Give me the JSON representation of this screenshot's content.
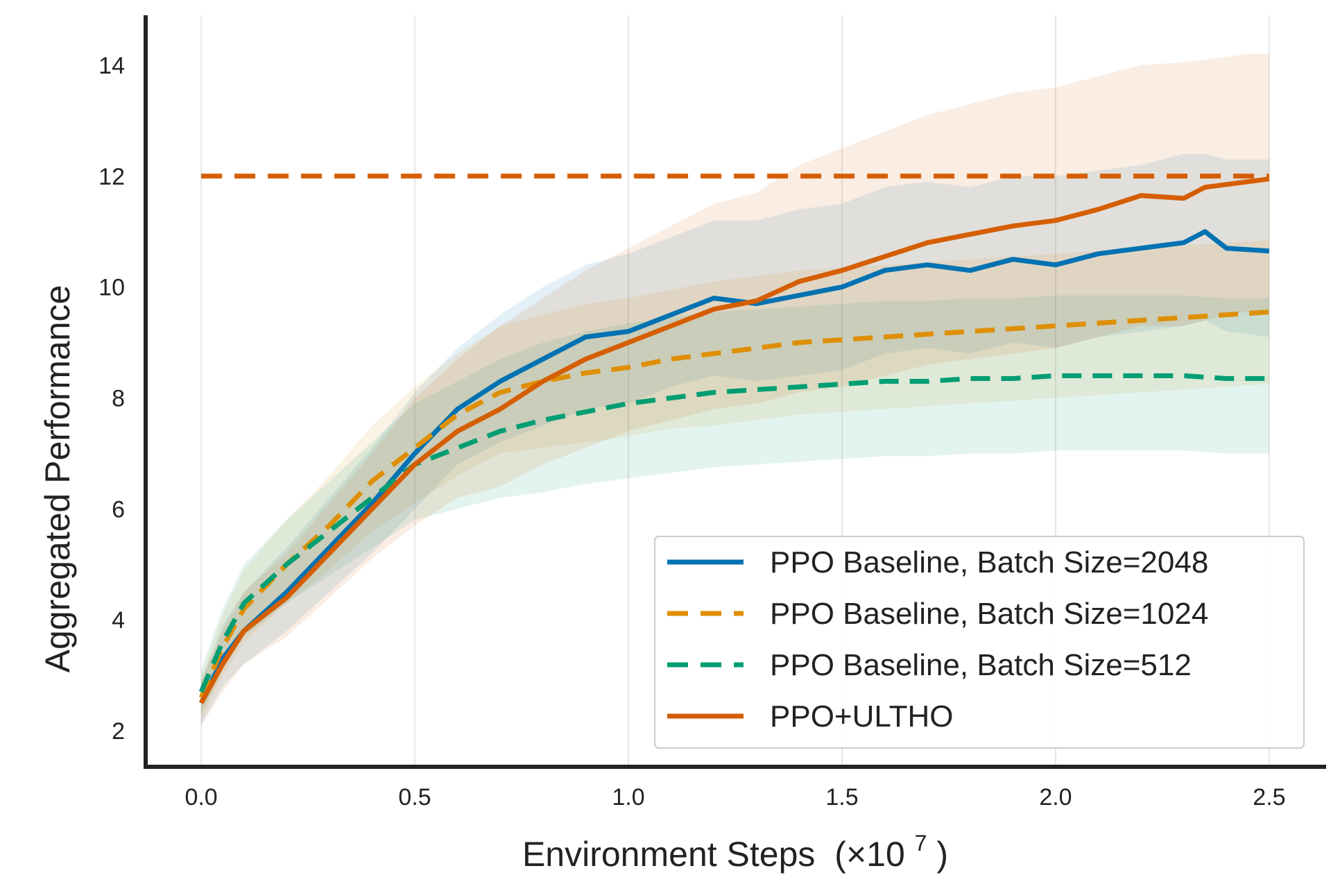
{
  "chart_data": {
    "type": "line",
    "xlabel_main": "Environment Steps",
    "xlabel_unit_prefix": "(×10",
    "xlabel_unit_exp": "7",
    "xlabel_unit_suffix": ")",
    "ylabel": "Aggregated Performance",
    "xlim": [
      -0.13,
      2.63
    ],
    "ylim": [
      1.35,
      14.9
    ],
    "xticks": [
      0.0,
      0.5,
      1.0,
      1.5,
      2.0,
      2.5
    ],
    "xtick_labels": [
      "0.0",
      "0.5",
      "1.0",
      "1.5",
      "2.0",
      "2.5"
    ],
    "yticks": [
      2,
      4,
      6,
      8,
      10,
      12,
      14
    ],
    "ytick_labels": [
      "2",
      "4",
      "6",
      "8",
      "10",
      "12",
      "14"
    ],
    "grid": "vertical",
    "legend_position": "bottom-right",
    "reference_line": {
      "y": 12.0,
      "color": "#d55e00",
      "style": "dashed"
    },
    "series": [
      {
        "name": "PPO Baseline, Batch Size=2048",
        "color": "#0072b2",
        "style": "solid",
        "x": [
          0.0,
          0.05,
          0.1,
          0.2,
          0.3,
          0.4,
          0.5,
          0.6,
          0.7,
          0.8,
          0.9,
          1.0,
          1.1,
          1.2,
          1.3,
          1.4,
          1.5,
          1.6,
          1.7,
          1.8,
          1.9,
          2.0,
          2.1,
          2.2,
          2.3,
          2.35,
          2.4,
          2.5
        ],
        "values": [
          2.5,
          3.3,
          3.8,
          4.5,
          5.3,
          6.1,
          7.0,
          7.8,
          8.3,
          8.7,
          9.1,
          9.2,
          9.5,
          9.8,
          9.7,
          9.85,
          10.0,
          10.3,
          10.4,
          10.3,
          10.5,
          10.4,
          10.6,
          10.7,
          10.8,
          11.0,
          10.7,
          10.65
        ],
        "band_upper": [
          2.9,
          3.9,
          4.5,
          5.3,
          6.2,
          7.1,
          8.1,
          8.9,
          9.5,
          10.0,
          10.4,
          10.6,
          10.9,
          11.2,
          11.2,
          11.4,
          11.5,
          11.8,
          11.9,
          11.8,
          12.0,
          12.0,
          12.1,
          12.2,
          12.4,
          12.4,
          12.3,
          12.3
        ],
        "band_lower": [
          2.1,
          2.8,
          3.2,
          3.8,
          4.5,
          5.2,
          6.0,
          6.8,
          7.2,
          7.5,
          7.8,
          7.9,
          8.2,
          8.4,
          8.3,
          8.4,
          8.5,
          8.8,
          8.9,
          8.8,
          9.0,
          8.9,
          9.1,
          9.2,
          9.3,
          9.4,
          9.2,
          9.1
        ]
      },
      {
        "name": "PPO Baseline, Batch Size=1024",
        "color": "#de8f05",
        "style": "dashed",
        "x": [
          0.0,
          0.05,
          0.1,
          0.2,
          0.3,
          0.4,
          0.5,
          0.6,
          0.7,
          0.8,
          0.9,
          1.0,
          1.1,
          1.2,
          1.3,
          1.4,
          1.5,
          1.6,
          1.7,
          1.8,
          1.9,
          2.0,
          2.1,
          2.2,
          2.3,
          2.4,
          2.5
        ],
        "values": [
          2.6,
          3.5,
          4.2,
          5.0,
          5.7,
          6.5,
          7.1,
          7.7,
          8.1,
          8.3,
          8.45,
          8.55,
          8.7,
          8.8,
          8.9,
          9.0,
          9.05,
          9.1,
          9.15,
          9.2,
          9.25,
          9.3,
          9.35,
          9.4,
          9.45,
          9.5,
          9.55
        ],
        "band_upper": [
          3.0,
          4.1,
          4.9,
          5.8,
          6.6,
          7.5,
          8.2,
          8.8,
          9.3,
          9.5,
          9.7,
          9.8,
          9.95,
          10.1,
          10.2,
          10.3,
          10.35,
          10.4,
          10.45,
          10.5,
          10.55,
          10.6,
          10.65,
          10.7,
          10.75,
          10.8,
          10.85
        ],
        "band_lower": [
          2.2,
          3.0,
          3.6,
          4.3,
          4.9,
          5.6,
          6.1,
          6.6,
          7.0,
          7.1,
          7.2,
          7.3,
          7.45,
          7.5,
          7.6,
          7.7,
          7.75,
          7.8,
          7.85,
          7.9,
          7.95,
          8.0,
          8.05,
          8.1,
          8.15,
          8.2,
          8.25
        ]
      },
      {
        "name": "PPO Baseline, Batch Size=512",
        "color": "#029e73",
        "style": "dashed",
        "x": [
          0.0,
          0.05,
          0.1,
          0.2,
          0.3,
          0.4,
          0.5,
          0.6,
          0.7,
          0.8,
          0.9,
          1.0,
          1.1,
          1.2,
          1.3,
          1.4,
          1.5,
          1.6,
          1.7,
          1.8,
          1.9,
          2.0,
          2.1,
          2.2,
          2.3,
          2.4,
          2.5
        ],
        "values": [
          2.7,
          3.6,
          4.3,
          5.0,
          5.6,
          6.2,
          6.8,
          7.1,
          7.4,
          7.6,
          7.75,
          7.9,
          8.0,
          8.1,
          8.15,
          8.2,
          8.25,
          8.3,
          8.3,
          8.35,
          8.35,
          8.4,
          8.4,
          8.4,
          8.4,
          8.35,
          8.35
        ],
        "band_upper": [
          3.1,
          4.2,
          5.0,
          5.8,
          6.5,
          7.2,
          7.9,
          8.3,
          8.7,
          9.0,
          9.2,
          9.35,
          9.45,
          9.55,
          9.6,
          9.65,
          9.7,
          9.75,
          9.75,
          9.8,
          9.8,
          9.85,
          9.85,
          9.85,
          9.85,
          9.8,
          9.8
        ],
        "band_lower": [
          2.3,
          3.1,
          3.7,
          4.3,
          4.8,
          5.3,
          5.8,
          6.0,
          6.2,
          6.3,
          6.45,
          6.55,
          6.65,
          6.75,
          6.8,
          6.85,
          6.9,
          6.95,
          6.95,
          7.0,
          7.0,
          7.05,
          7.05,
          7.05,
          7.05,
          7.0,
          7.0
        ]
      },
      {
        "name": "PPO+ULTHO",
        "color": "#d55e00",
        "style": "solid",
        "x": [
          0.0,
          0.05,
          0.1,
          0.2,
          0.3,
          0.4,
          0.5,
          0.6,
          0.7,
          0.8,
          0.9,
          1.0,
          1.1,
          1.2,
          1.3,
          1.4,
          1.5,
          1.6,
          1.7,
          1.8,
          1.9,
          2.0,
          2.1,
          2.2,
          2.3,
          2.35,
          2.4,
          2.45,
          2.5
        ],
        "values": [
          2.5,
          3.2,
          3.8,
          4.4,
          5.2,
          6.0,
          6.8,
          7.4,
          7.8,
          8.3,
          8.7,
          9.0,
          9.3,
          9.6,
          9.75,
          10.1,
          10.3,
          10.55,
          10.8,
          10.95,
          11.1,
          11.2,
          11.4,
          11.65,
          11.6,
          11.8,
          11.85,
          11.9,
          11.95
        ],
        "band_upper": [
          2.9,
          3.8,
          4.5,
          5.2,
          6.1,
          7.0,
          8.0,
          8.7,
          9.3,
          9.8,
          10.3,
          10.7,
          11.1,
          11.5,
          11.7,
          12.2,
          12.5,
          12.8,
          13.1,
          13.3,
          13.5,
          13.6,
          13.8,
          14.0,
          14.05,
          14.1,
          14.15,
          14.2,
          14.2
        ],
        "band_lower": [
          2.1,
          2.7,
          3.2,
          3.7,
          4.4,
          5.1,
          5.7,
          6.2,
          6.4,
          6.8,
          7.1,
          7.4,
          7.6,
          7.8,
          7.9,
          8.1,
          8.2,
          8.4,
          8.6,
          8.7,
          8.8,
          8.9,
          9.1,
          9.3,
          9.3,
          9.4,
          9.5,
          9.55,
          9.6
        ]
      }
    ]
  }
}
